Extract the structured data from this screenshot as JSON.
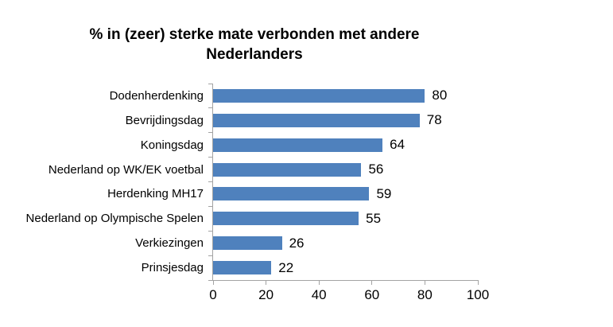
{
  "chart_data": {
    "type": "bar",
    "orientation": "horizontal",
    "title": "% in (zeer) sterke mate verbonden met andere Nederlanders",
    "title_lines": [
      "% in (zeer) sterke mate verbonden met andere",
      "Nederlanders"
    ],
    "categories": [
      "Dodenherdenking",
      "Bevrijdingsdag",
      "Koningsdag",
      "Nederland op WK/EK voetbal",
      "Herdenking MH17",
      "Nederland op Olympische Spelen",
      "Verkiezingen",
      "Prinsjesdag"
    ],
    "values": [
      80,
      78,
      64,
      56,
      59,
      55,
      26,
      22
    ],
    "data_labels": [
      80,
      78,
      64,
      56,
      59,
      55,
      26,
      22
    ],
    "xlabel": "",
    "ylabel": "",
    "xlim": [
      0,
      100
    ],
    "xticks": [
      0,
      20,
      40,
      60,
      80,
      100
    ],
    "grid": false,
    "legend": false,
    "bar_color": "#4F81BD",
    "axis_color": "#A3A3A3",
    "text_color": "#000000",
    "background_color": "#FFFFFF"
  }
}
